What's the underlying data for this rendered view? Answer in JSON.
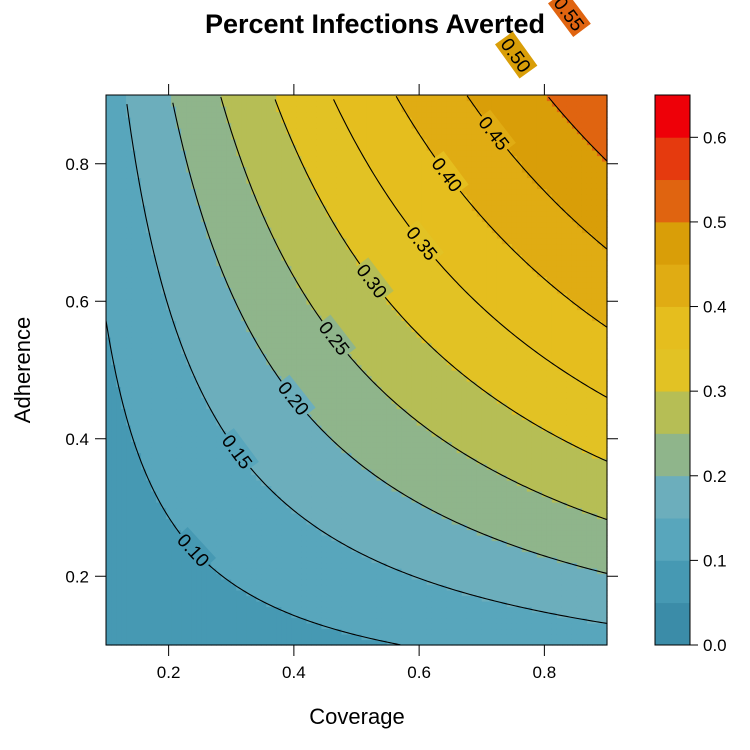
{
  "chart_data": {
    "type": "contour",
    "title": "Percent Infections Averted",
    "xlabel": "Coverage",
    "ylabel": "Adherence",
    "xlim": [
      0.1,
      0.9
    ],
    "ylim": [
      0.1,
      0.9
    ],
    "x_ticks": [
      0.2,
      0.4,
      0.6,
      0.8
    ],
    "x_tick_labels": [
      "0.2",
      "0.4",
      "0.6",
      "0.8"
    ],
    "y_ticks": [
      0.2,
      0.4,
      0.6,
      0.8
    ],
    "y_tick_labels": [
      "0.2",
      "0.4",
      "0.6",
      "0.8"
    ],
    "levels": [
      0.05,
      0.1,
      0.15,
      0.2,
      0.25,
      0.3,
      0.35,
      0.4,
      0.45,
      0.5,
      0.55,
      0.6
    ],
    "contour_labels": [
      {
        "level": 0.1,
        "text": "0.10",
        "x": 0.24,
        "y": 0.165
      },
      {
        "level": 0.15,
        "text": "0.15",
        "x": 0.31,
        "y": 0.255
      },
      {
        "level": 0.2,
        "text": "0.20",
        "x": 0.4,
        "y": 0.325
      },
      {
        "level": 0.25,
        "text": "0.25",
        "x": 0.465,
        "y": 0.4
      },
      {
        "level": 0.3,
        "text": "0.30",
        "x": 0.525,
        "y": 0.465
      },
      {
        "level": 0.35,
        "text": "0.35",
        "x": 0.605,
        "y": 0.53
      },
      {
        "level": 0.4,
        "text": "0.40",
        "x": 0.645,
        "y": 0.595
      },
      {
        "level": 0.45,
        "text": "0.45",
        "x": 0.72,
        "y": 0.655
      },
      {
        "level": 0.5,
        "text": "0.50",
        "x": 0.755,
        "y": 0.74
      },
      {
        "level": 0.55,
        "text": "0.55",
        "x": 0.84,
        "y": 0.8
      }
    ],
    "colorbar": {
      "range": [
        0.0,
        0.65
      ],
      "ticks": [
        0.0,
        0.1,
        0.2,
        0.3,
        0.4,
        0.5,
        0.6
      ],
      "tick_labels": [
        "0.0",
        "0.1",
        "0.2",
        "0.3",
        "0.4",
        "0.5",
        "0.6"
      ],
      "breaks": [
        0.0,
        0.05,
        0.1,
        0.15,
        0.2,
        0.25,
        0.3,
        0.35,
        0.4,
        0.45,
        0.5,
        0.55,
        0.6,
        0.65
      ],
      "colors": [
        "#3B8CA8",
        "#4699B3",
        "#58A6BC",
        "#6CAEBC",
        "#8FB58B",
        "#B6BE55",
        "#E2C224",
        "#E5BE1E",
        "#E0AC13",
        "#D99E08",
        "#E06410",
        "#E53A0E",
        "#EE0008"
      ]
    },
    "grid": false
  }
}
